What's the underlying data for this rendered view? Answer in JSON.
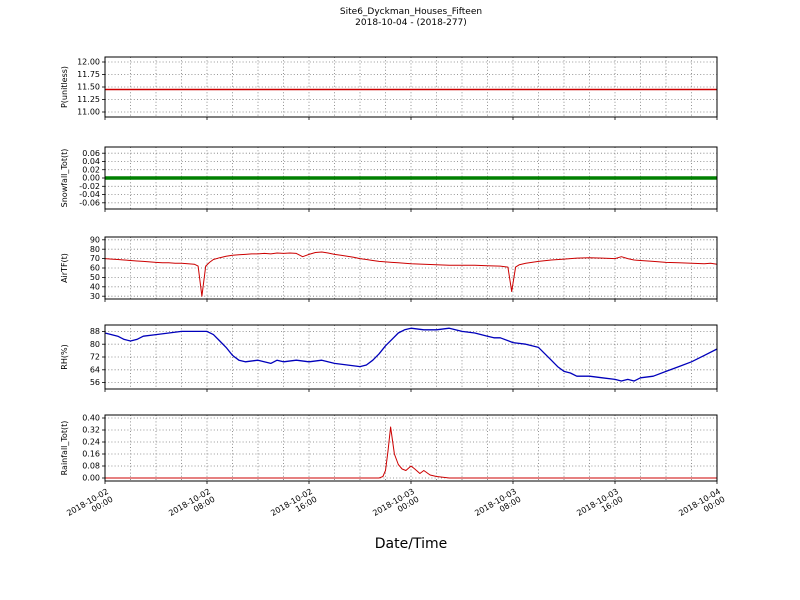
{
  "header": {
    "title": "Site6_Dyckman_Houses_Fifteen",
    "subtitle": "2018-10-04 - (2018-277)"
  },
  "xlabel": "Date/Time",
  "x_axis": {
    "range": [
      0,
      48
    ],
    "grid_step": 2,
    "tick_hours": [
      0,
      8,
      16,
      24,
      32,
      40,
      48
    ],
    "tick_labels": [
      "2018-10-02\n00:00",
      "2018-10-02\n08:00",
      "2018-10-02\n16:00",
      "2018-10-03\n00:00",
      "2018-10-03\n08:00",
      "2018-10-03\n16:00",
      "2018-10-04\n00:00"
    ]
  },
  "chart_data": [
    {
      "type": "line",
      "ylabel": "P(unitless)",
      "color": "#cc0000",
      "linewidth": 1.4,
      "ylim": [
        10.9,
        12.1
      ],
      "yticks": [
        11.0,
        11.25,
        11.5,
        11.75,
        12.0
      ],
      "ytick_labels": [
        "11.00",
        "11.25",
        "11.50",
        "11.75",
        "12.00"
      ],
      "x": [
        0,
        48
      ],
      "values": [
        11.45,
        11.45
      ]
    },
    {
      "type": "line",
      "ylabel": "Snowfall_Tot(t)",
      "color": "#008000",
      "linewidth": 3.5,
      "ylim": [
        -0.075,
        0.075
      ],
      "yticks": [
        -0.06,
        -0.04,
        -0.02,
        0.0,
        0.02,
        0.04,
        0.06
      ],
      "ytick_labels": [
        "-0.06",
        "-0.04",
        "-0.02",
        "0.00",
        "0.02",
        "0.04",
        "0.06"
      ],
      "x": [
        0,
        48
      ],
      "values": [
        0.0,
        0.0
      ]
    },
    {
      "type": "line",
      "ylabel": "AirTF(t)",
      "color": "#cc0000",
      "linewidth": 1,
      "ylim": [
        27,
        93
      ],
      "yticks": [
        30,
        40,
        50,
        60,
        70,
        80,
        90
      ],
      "ytick_labels": [
        "30",
        "40",
        "50",
        "60",
        "70",
        "80",
        "90"
      ],
      "x": [
        0,
        0.5,
        1,
        1.5,
        2,
        2.5,
        3,
        3.5,
        4,
        4.5,
        5,
        5.5,
        6,
        6.5,
        7,
        7.3,
        7.6,
        7.9,
        8.2,
        8.5,
        9,
        9.5,
        10,
        10.5,
        11,
        11.5,
        12,
        12.5,
        13,
        13.5,
        14,
        14.5,
        15,
        15.5,
        16,
        16.5,
        17,
        17.5,
        18,
        18.5,
        19,
        19.5,
        20,
        20.5,
        21,
        21.5,
        22,
        22.5,
        23,
        23.5,
        24,
        25,
        26,
        27,
        28,
        29,
        30,
        31,
        31.6,
        31.9,
        32.2,
        32.5,
        33,
        34,
        35,
        36,
        37,
        38,
        39,
        40,
        40.5,
        41,
        41.5,
        42,
        43,
        44,
        45,
        46,
        47,
        47.5,
        48
      ],
      "values": [
        70,
        69.5,
        69,
        68.5,
        68,
        67.5,
        67,
        66.5,
        66,
        65.5,
        65.5,
        65,
        65,
        64.5,
        64,
        62,
        30,
        62,
        66,
        69,
        71,
        72.5,
        73.5,
        74,
        74.5,
        75,
        75,
        75.5,
        75,
        76,
        75.5,
        76,
        75.5,
        72,
        74.5,
        76.5,
        77,
        76,
        74.5,
        73.5,
        72.5,
        71.5,
        70,
        69,
        68,
        67,
        66.5,
        66,
        65.5,
        65,
        64.5,
        64,
        63.5,
        63,
        63,
        63,
        62.5,
        62,
        61,
        35,
        61,
        63.5,
        65,
        67,
        68.5,
        69.5,
        70.5,
        71,
        70.5,
        70,
        72,
        70,
        68.5,
        68,
        67,
        66,
        65.5,
        65,
        64.5,
        65,
        64
      ]
    },
    {
      "type": "line",
      "ylabel": "RH(%)",
      "color": "#0000bb",
      "linewidth": 1.3,
      "ylim": [
        52,
        92
      ],
      "yticks": [
        56,
        64,
        72,
        80,
        88
      ],
      "ytick_labels": [
        "56",
        "64",
        "72",
        "80",
        "88"
      ],
      "x": [
        0,
        0.5,
        1,
        1.5,
        2,
        2.5,
        3,
        4,
        5,
        6,
        7,
        8,
        8.5,
        9,
        9.5,
        10,
        10.5,
        11,
        12,
        13,
        13.5,
        14,
        15,
        16,
        17,
        18,
        19,
        20,
        20.5,
        21,
        21.5,
        22,
        22.5,
        23,
        23.5,
        24,
        25,
        26,
        27,
        28,
        29,
        30,
        30.5,
        31,
        32,
        33,
        34,
        34.5,
        35,
        35.5,
        36,
        36.5,
        37,
        38,
        39,
        40,
        40.5,
        41,
        41.5,
        42,
        43,
        44,
        45,
        46,
        47,
        48
      ],
      "values": [
        87,
        86,
        85,
        83,
        82,
        83,
        85,
        86,
        87,
        88,
        88,
        88,
        86,
        82,
        78,
        73,
        70,
        69,
        70,
        68,
        70,
        69,
        70,
        69,
        70,
        68,
        67,
        66,
        67,
        70,
        74,
        79,
        83,
        87,
        89,
        90,
        89,
        89,
        90,
        88,
        87,
        85,
        84,
        84,
        81,
        80,
        78,
        74,
        70,
        66,
        63,
        62,
        60,
        60,
        59,
        58,
        57,
        58,
        57,
        59,
        60,
        63,
        66,
        69,
        73,
        77
      ]
    },
    {
      "type": "line",
      "ylabel": "Rainfall_Tot(t)",
      "color": "#cc0000",
      "linewidth": 1,
      "ylim": [
        -0.02,
        0.42
      ],
      "yticks": [
        0.0,
        0.08,
        0.16,
        0.24,
        0.32,
        0.4
      ],
      "ytick_labels": [
        "0.00",
        "0.08",
        "0.16",
        "0.24",
        "0.32",
        "0.40"
      ],
      "x": [
        0,
        21.5,
        21.8,
        22.0,
        22.2,
        22.4,
        22.7,
        23.0,
        23.3,
        23.6,
        24.0,
        24.3,
        24.7,
        25.0,
        25.5,
        26.0,
        27.0,
        48
      ],
      "values": [
        0,
        0,
        0.01,
        0.05,
        0.18,
        0.34,
        0.16,
        0.09,
        0.06,
        0.05,
        0.08,
        0.06,
        0.03,
        0.05,
        0.02,
        0.01,
        0,
        0
      ]
    }
  ]
}
